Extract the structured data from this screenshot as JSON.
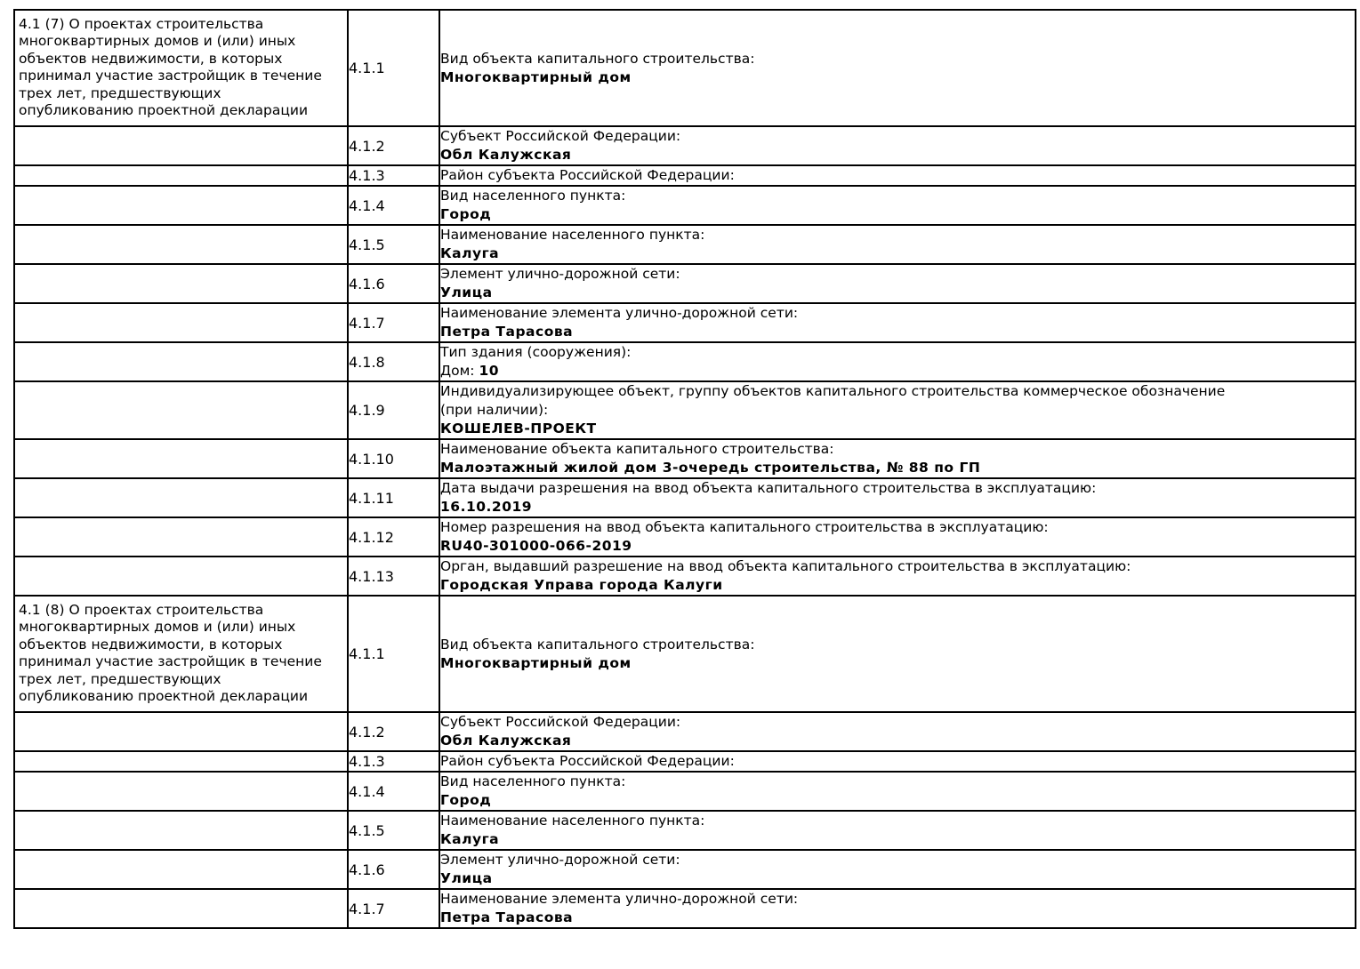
{
  "document": {
    "type": "project-declaration-table",
    "colors": {
      "border": "#000000",
      "text": "#000000",
      "background": "#ffffff"
    }
  },
  "sections": [
    {
      "title": "4.1 (7) О проектах строительства многоквартирных домов и (или) иных объектов недвижимости, в которых принимал участие застройщик в течение трех лет, предшествующих опубликованию проектной декларации",
      "rows": [
        {
          "num": "4.1.1",
          "label": "Вид объекта капитального строительства:",
          "value": "Многоквартирный дом"
        },
        {
          "num": "4.1.2",
          "label": "Субъект Российской Федерации:",
          "value": "Обл Калужская"
        },
        {
          "num": "4.1.3",
          "label": "Район субъекта Российской Федерации:",
          "value": ""
        },
        {
          "num": "4.1.4",
          "label": "Вид населенного пункта:",
          "value": "Город"
        },
        {
          "num": "4.1.5",
          "label": "Наименование населенного пункта:",
          "value": "Калуга"
        },
        {
          "num": "4.1.6",
          "label": "Элемент улично-дорожной сети:",
          "value": "Улица"
        },
        {
          "num": "4.1.7",
          "label": "Наименование элемента улично-дорожной сети:",
          "value": "Петра Тарасова"
        },
        {
          "num": "4.1.8",
          "label": "Тип здания (сооружения):",
          "value_prefix": "Дом: ",
          "value": "10"
        },
        {
          "num": "4.1.9",
          "label": "Индивидуализирующее объект, группу объектов капитального строительства коммерческое обозначение (при наличии):",
          "value": "КОШЕЛЕВ-ПРОЕКТ"
        },
        {
          "num": "4.1.10",
          "label": "Наименование объекта капитального строительства:",
          "value": "Малоэтажный жилой дом 3-очередь строительства, № 88 по ГП"
        },
        {
          "num": "4.1.11",
          "label": "Дата выдачи разрешения на ввод объекта капитального строительства в эксплуатацию:",
          "value": "16.10.2019"
        },
        {
          "num": "4.1.12",
          "label": "Номер разрешения на ввод объекта капитального строительства в эксплуатацию:",
          "value": "RU40-301000-066-2019"
        },
        {
          "num": "4.1.13",
          "label": "Орган, выдавший разрешение на ввод объекта капитального строительства в эксплуатацию:",
          "value": "Городская Управа города Калуги"
        }
      ]
    },
    {
      "title": "4.1 (8) О проектах строительства многоквартирных домов и (или) иных объектов недвижимости, в которых принимал участие застройщик в течение трех лет, предшествующих опубликованию проектной декларации",
      "rows": [
        {
          "num": "4.1.1",
          "label": "Вид объекта капитального строительства:",
          "value": "Многоквартирный дом"
        },
        {
          "num": "4.1.2",
          "label": "Субъект Российской Федерации:",
          "value": "Обл Калужская"
        },
        {
          "num": "4.1.3",
          "label": "Район субъекта Российской Федерации:",
          "value": ""
        },
        {
          "num": "4.1.4",
          "label": "Вид населенного пункта:",
          "value": "Город"
        },
        {
          "num": "4.1.5",
          "label": "Наименование населенного пункта:",
          "value": "Калуга"
        },
        {
          "num": "4.1.6",
          "label": "Элемент улично-дорожной сети:",
          "value": "Улица"
        },
        {
          "num": "4.1.7",
          "label": "Наименование элемента улично-дорожной сети:",
          "value": "Петра Тарасова"
        }
      ]
    }
  ]
}
